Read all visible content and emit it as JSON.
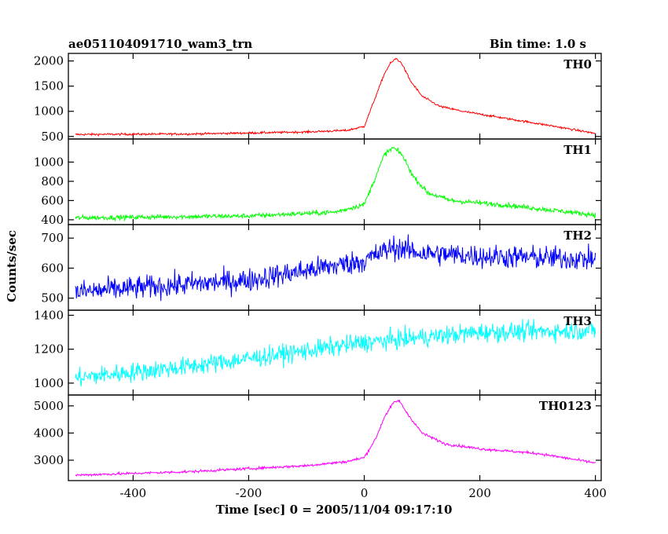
{
  "header": {
    "title": "ae051104091710_wam3_trn",
    "bin_time": "Bin time: 1.0 s"
  },
  "chart_data": {
    "type": "line",
    "xlabel": "Time [sec] 0 = 2005/11/04 09:17:10",
    "ylabel": "Counts/sec",
    "xlim": [
      -512,
      410
    ],
    "xticks": [
      -400,
      -200,
      0,
      200,
      400
    ],
    "grid": false,
    "panels": [
      {
        "name": "TH0",
        "color": "#ff0000",
        "ylim": [
          450,
          2150
        ],
        "yticks": [
          500,
          1000,
          1500,
          2000
        ],
        "noise": 15,
        "x": [
          -500,
          -300,
          -100,
          -30,
          0,
          20,
          35,
          45,
          55,
          65,
          80,
          100,
          130,
          170,
          250,
          320,
          400
        ],
        "y": [
          540,
          550,
          590,
          620,
          700,
          1300,
          1750,
          1950,
          2050,
          1950,
          1600,
          1300,
          1100,
          1000,
          850,
          720,
          560
        ]
      },
      {
        "name": "TH1",
        "color": "#00ff00",
        "ylim": [
          350,
          1240
        ],
        "yticks": [
          400,
          600,
          800,
          1000
        ],
        "noise": 18,
        "x": [
          -500,
          -200,
          -50,
          0,
          20,
          35,
          50,
          65,
          85,
          110,
          150,
          250,
          400
        ],
        "y": [
          420,
          440,
          480,
          560,
          850,
          1080,
          1150,
          1080,
          850,
          680,
          600,
          550,
          450
        ]
      },
      {
        "name": "TH2",
        "color": "#0000ff",
        "ylim": [
          460,
          745
        ],
        "yticks": [
          500,
          600,
          700
        ],
        "noise": 28,
        "x": [
          -500,
          -200,
          0,
          50,
          100,
          200,
          400
        ],
        "y": [
          520,
          560,
          625,
          670,
          650,
          640,
          630
        ]
      },
      {
        "name": "TH3",
        "color": "#00ffff",
        "ylim": [
          930,
          1430
        ],
        "yticks": [
          1000,
          1200,
          1400
        ],
        "noise": 40,
        "x": [
          -500,
          -300,
          -100,
          0,
          100,
          200,
          400
        ],
        "y": [
          1030,
          1100,
          1190,
          1240,
          1270,
          1300,
          1310
        ]
      },
      {
        "name": "TH0123",
        "color": "#ff00ff",
        "ylim": [
          2250,
          5400
        ],
        "yticks": [
          3000,
          4000,
          5000
        ],
        "noise": 35,
        "x": [
          -500,
          -300,
          -100,
          -30,
          0,
          20,
          35,
          50,
          60,
          75,
          100,
          140,
          200,
          300,
          400
        ],
        "y": [
          2450,
          2580,
          2800,
          2950,
          3100,
          3800,
          4600,
          5100,
          5200,
          4700,
          4000,
          3600,
          3420,
          3250,
          2900
        ]
      }
    ]
  }
}
